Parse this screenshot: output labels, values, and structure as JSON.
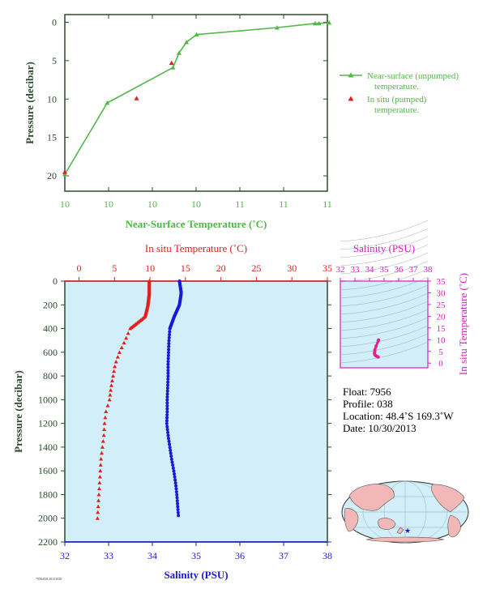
{
  "colors": {
    "green": "#50b848",
    "red": "#e0201e",
    "blue": "#1a1ad6",
    "magenta": "#d21fbf",
    "axis_dark": "#2e4a2e",
    "plot_bg": "#d2eef9",
    "land": "#f2b8b8",
    "pink_profile": "#e8208a"
  },
  "chart_data": [
    {
      "type": "line",
      "id": "near-surface",
      "xlabel": "Near-Surface Temperature (˚C)",
      "ylabel": "Pressure (decibar)",
      "xticks": [
        "10",
        "10",
        "10",
        "10",
        "11",
        "11",
        "11"
      ],
      "xlim": [
        0,
        6
      ],
      "yticks": [
        "0",
        "5",
        "10",
        "15",
        "20"
      ],
      "ylim": [
        22,
        -1
      ],
      "series": [
        {
          "name": "Near-surface (unpumped) temperature.",
          "x": [
            0.0,
            0.97,
            2.47,
            2.61,
            2.78,
            3.01,
            4.85,
            5.72,
            5.81,
            6.04
          ],
          "y": [
            19.8,
            10.5,
            5.9,
            4.0,
            2.6,
            1.6,
            0.7,
            0.15,
            0.15,
            0.05
          ]
        },
        {
          "name": "In situ (pumped) temperature.",
          "x": [
            0.0,
            1.64,
            2.44
          ],
          "y": [
            19.5,
            9.9,
            5.3
          ]
        }
      ],
      "legend": [
        "Near-surface (unpumped)",
        "temperature.",
        "In situ (pumped)",
        "temperature."
      ]
    },
    {
      "type": "scatter",
      "id": "profile",
      "top_axis_label": "In situ Temperature (˚C)",
      "bottom_axis_label": "Salinity (PSU)",
      "ylabel": "Pressure (decibar)",
      "top_ticks": [
        "0",
        "5",
        "10",
        "15",
        "20",
        "25",
        "30",
        "35"
      ],
      "temp_lim": [
        -2,
        35
      ],
      "bottom_ticks": [
        "32",
        "33",
        "34",
        "35",
        "36",
        "37",
        "38"
      ],
      "sal_lim": [
        32,
        38
      ],
      "yticks": [
        "0",
        "200",
        "400",
        "600",
        "800",
        "1000",
        "1200",
        "1400",
        "1600",
        "1800",
        "2000",
        "2200"
      ],
      "ylim": [
        0,
        2200
      ],
      "series": [
        {
          "name": "In situ Temperature",
          "pressure": [
            0,
            100,
            200,
            300,
            400,
            500,
            600,
            700,
            800,
            900,
            1000,
            1100,
            1200,
            1300,
            1400,
            1500,
            1600,
            1700,
            1800,
            1900,
            2000
          ],
          "values": [
            9.9,
            9.9,
            9.7,
            9.3,
            7.2,
            6.5,
            5.7,
            5.1,
            4.8,
            4.5,
            4.3,
            3.8,
            3.6,
            3.5,
            3.3,
            3.1,
            3.0,
            2.9,
            2.8,
            2.7,
            2.6
          ]
        },
        {
          "name": "Salinity",
          "pressure": [
            0,
            100,
            200,
            300,
            400,
            500,
            600,
            700,
            800,
            900,
            1000,
            1100,
            1200,
            1300,
            1400,
            1500,
            1600,
            1700,
            1800,
            1900,
            2000
          ],
          "values": [
            34.62,
            34.66,
            34.62,
            34.5,
            34.4,
            34.38,
            34.37,
            34.36,
            34.36,
            34.35,
            34.34,
            34.34,
            34.33,
            34.36,
            34.4,
            34.44,
            34.49,
            34.53,
            34.56,
            34.58,
            34.6
          ]
        }
      ]
    },
    {
      "type": "scatter",
      "id": "ts-diagram",
      "top_axis_label": "Salinity (PSU)",
      "right_axis_label": "In situ Temperature (˚C)",
      "top_ticks": [
        "32",
        "33",
        "34",
        "35",
        "36",
        "37",
        "38"
      ],
      "sal_lim": [
        32,
        38
      ],
      "right_ticks": [
        "0",
        "5",
        "10",
        "15",
        "20",
        "25",
        "30",
        "35"
      ],
      "temp_lim": [
        -2,
        35
      ],
      "series": [
        {
          "name": "T-S",
          "salinity": [
            34.62,
            34.6,
            34.45,
            34.37,
            34.36,
            34.34,
            34.36,
            34.44,
            34.53,
            34.6
          ],
          "temperature": [
            9.9,
            9.5,
            7.2,
            5.7,
            4.8,
            4.3,
            3.6,
            3.1,
            2.8,
            2.6
          ]
        }
      ]
    }
  ],
  "info": {
    "float": "Float:  7956",
    "profile": "Profile:  038",
    "location": "Location:  48.4˚S  169.3˚W",
    "date": "Date:  10/30/2013"
  },
  "stamp": "7956/038.20131030"
}
